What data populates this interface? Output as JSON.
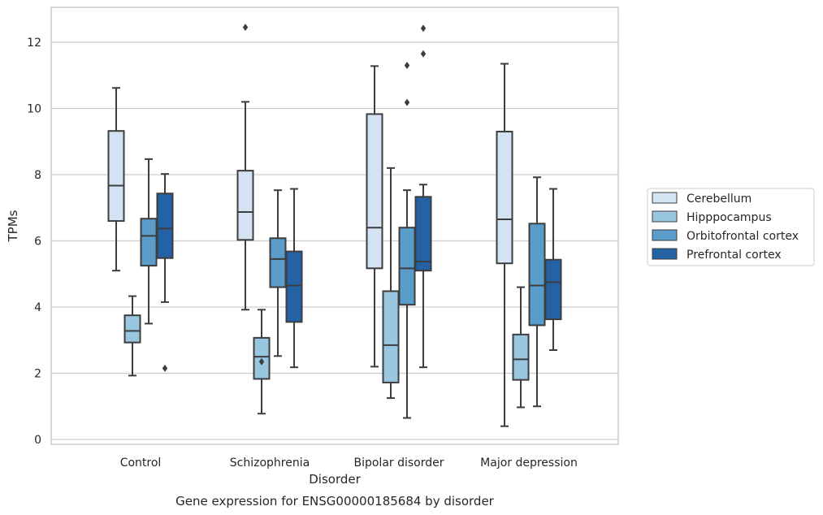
{
  "chart_data": {
    "type": "box",
    "title": "",
    "caption": "Gene expression for ENSG00000185684 by disorder",
    "xlabel": "Disorder",
    "ylabel": "TPMs",
    "ylim": [
      -0.2,
      13.0
    ],
    "yticks": [
      0,
      2,
      4,
      6,
      8,
      10,
      12
    ],
    "grid": "horizontal",
    "legend_position": "right",
    "categories": [
      "Control",
      "Schizophrenia",
      "Bipolar disorder",
      "Major depression"
    ],
    "series": [
      {
        "name": "Cerebellum",
        "color": "#d3e3f3",
        "boxes": [
          {
            "whisker_low": 5.1,
            "q1": 6.6,
            "median": 7.67,
            "q3": 9.32,
            "whisker_high": 10.62,
            "outliers": []
          },
          {
            "whisker_low": 3.92,
            "q1": 6.03,
            "median": 6.87,
            "q3": 8.12,
            "whisker_high": 10.2,
            "outliers": [
              12.45
            ]
          },
          {
            "whisker_low": 2.2,
            "q1": 5.17,
            "median": 6.4,
            "q3": 9.83,
            "whisker_high": 11.28,
            "outliers": []
          },
          {
            "whisker_low": 0.4,
            "q1": 5.32,
            "median": 6.65,
            "q3": 9.3,
            "whisker_high": 11.35,
            "outliers": []
          }
        ]
      },
      {
        "name": "Hipppocampus",
        "color": "#9ac7e0",
        "boxes": [
          {
            "whisker_low": 1.93,
            "q1": 2.93,
            "median": 3.28,
            "q3": 3.75,
            "whisker_high": 4.33,
            "outliers": []
          },
          {
            "whisker_low": 0.78,
            "q1": 1.83,
            "median": 2.5,
            "q3": 3.07,
            "whisker_high": 3.92,
            "outliers": [
              2.35
            ]
          },
          {
            "whisker_low": 1.25,
            "q1": 1.72,
            "median": 2.85,
            "q3": 4.48,
            "whisker_high": 8.2,
            "outliers": []
          },
          {
            "whisker_low": 0.97,
            "q1": 1.8,
            "median": 2.42,
            "q3": 3.17,
            "whisker_high": 4.6,
            "outliers": []
          }
        ]
      },
      {
        "name": "Orbitofrontal cortex",
        "color": "#5a9dca",
        "boxes": [
          {
            "whisker_low": 3.5,
            "q1": 5.25,
            "median": 6.15,
            "q3": 6.67,
            "whisker_high": 8.47,
            "outliers": []
          },
          {
            "whisker_low": 2.52,
            "q1": 4.6,
            "median": 5.45,
            "q3": 6.08,
            "whisker_high": 7.53,
            "outliers": []
          },
          {
            "whisker_low": 0.65,
            "q1": 4.07,
            "median": 5.17,
            "q3": 6.4,
            "whisker_high": 7.53,
            "outliers": [
              10.18,
              11.3
            ]
          },
          {
            "whisker_low": 1.0,
            "q1": 3.45,
            "median": 4.65,
            "q3": 6.52,
            "whisker_high": 7.92,
            "outliers": []
          }
        ]
      },
      {
        "name": "Prefrontal cortex",
        "color": "#2363a5",
        "boxes": [
          {
            "whisker_low": 4.15,
            "q1": 5.48,
            "median": 6.37,
            "q3": 7.43,
            "whisker_high": 8.02,
            "outliers": [
              2.15
            ]
          },
          {
            "whisker_low": 2.18,
            "q1": 3.55,
            "median": 4.65,
            "q3": 5.68,
            "whisker_high": 7.57,
            "outliers": []
          },
          {
            "whisker_low": 2.18,
            "q1": 5.1,
            "median": 5.37,
            "q3": 7.33,
            "whisker_high": 7.7,
            "outliers": [
              11.65,
              12.42
            ]
          },
          {
            "whisker_low": 2.7,
            "q1": 3.63,
            "median": 4.75,
            "q3": 5.43,
            "whisker_high": 7.57,
            "outliers": []
          }
        ]
      }
    ]
  }
}
